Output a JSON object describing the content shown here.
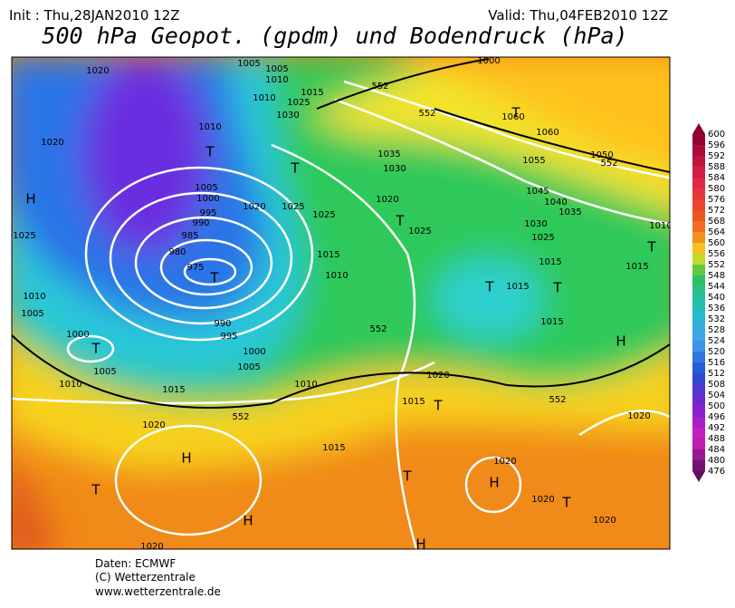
{
  "header": {
    "init": "Init : Thu,28JAN2010 12Z",
    "valid": "Valid: Thu,04FEB2010 12Z",
    "title": "500 hPa Geopot. (gpdm) und Bodendruck (hPa)"
  },
  "colorbar": {
    "levels": [
      600,
      596,
      592,
      588,
      584,
      580,
      576,
      572,
      568,
      564,
      560,
      556,
      552,
      548,
      544,
      540,
      536,
      532,
      528,
      524,
      520,
      516,
      512,
      508,
      504,
      500,
      496,
      492,
      488,
      484,
      480,
      476
    ]
  },
  "map": {
    "labels": [
      "1020",
      "1005",
      "1005",
      "1010",
      "1015",
      "1025",
      "1030",
      "1010",
      "1010",
      "1020",
      "T",
      "T",
      "H",
      "1005",
      "1000",
      "995",
      "990",
      "985",
      "980",
      "975",
      "T",
      "1020",
      "1025",
      "1025",
      "1015",
      "1010",
      "1025",
      "1010",
      "1005",
      "1000",
      "T",
      "1005",
      "1010",
      "1015",
      "990",
      "995",
      "1000",
      "1005",
      "1010",
      "1020",
      "H",
      "T",
      "H",
      "1015",
      "1020",
      "H",
      "T",
      "1020",
      "H",
      "1020",
      "T",
      "1020",
      "1020",
      "1020",
      "1015",
      "T",
      "1035",
      "1030",
      "1020",
      "T",
      "1025",
      "1015",
      "1015",
      "T",
      "T",
      "1015",
      "H",
      "T",
      "1015",
      "1010",
      "1025",
      "1030",
      "1035",
      "1040",
      "1045",
      "1050",
      "1055",
      "1060",
      "1060",
      "T",
      "1000",
      "552",
      "552",
      "552",
      "552",
      "552",
      "552"
    ]
  },
  "footer": [
    "Daten: ECMWF",
    "(C) Wetterzentrale",
    "www.wetterzentrale.de"
  ]
}
